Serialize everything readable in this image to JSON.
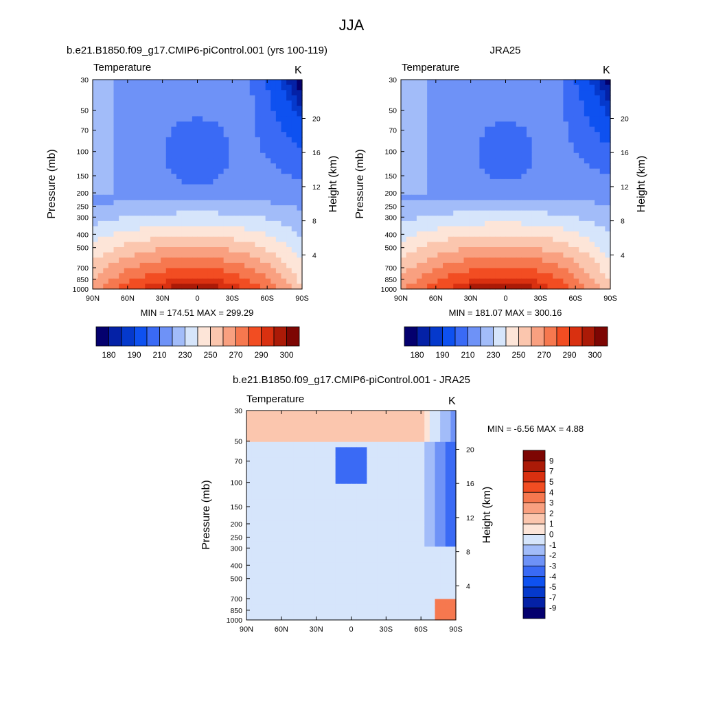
{
  "figure": {
    "title": "JJA"
  },
  "chart_data": [
    {
      "type": "heatmap",
      "panel": "model",
      "title": "b.e21.B1850.f09_g17.CMIP6-piControl.001 (yrs 100-119)",
      "left_label": "Temperature",
      "unit": "K",
      "ylabel": "Pressure (mb)",
      "ylabel_right": "Height (km)",
      "x_ticks": [
        "90N",
        "60N",
        "30N",
        "0",
        "30S",
        "60S",
        "90S"
      ],
      "y_ticks": [
        "30",
        "50",
        "70",
        "100",
        "150",
        "200",
        "250",
        "300",
        "400",
        "500",
        "700",
        "850",
        "1000"
      ],
      "height_ticks": [
        "4",
        "8",
        "12",
        "16",
        "20"
      ],
      "stats": "MIN = 174.51  MAX = 299.29",
      "min": 174.51,
      "max": 299.29,
      "colorbar_labels": [
        "180",
        "190",
        "210",
        "230",
        "250",
        "270",
        "290",
        "300"
      ],
      "colorbar_colors": [
        "#04006e",
        "#0421a6",
        "#0539cc",
        "#0e51f0",
        "#3a6af5",
        "#6e92f7",
        "#a2bcf9",
        "#d6e5fb",
        "#fde5d8",
        "#fbc6ae",
        "#f9a080",
        "#f6784f",
        "#f24d22",
        "#d93010",
        "#ab1a07",
        "#7d0603"
      ]
    },
    {
      "type": "heatmap",
      "panel": "reanalysis",
      "title": "JRA25",
      "left_label": "Temperature",
      "unit": "K",
      "ylabel": "Pressure (mb)",
      "ylabel_right": "Height (km)",
      "x_ticks": [
        "90N",
        "60N",
        "30N",
        "0",
        "30S",
        "60S",
        "90S"
      ],
      "y_ticks": [
        "30",
        "50",
        "70",
        "100",
        "150",
        "200",
        "250",
        "300",
        "400",
        "500",
        "700",
        "850",
        "1000"
      ],
      "height_ticks": [
        "4",
        "8",
        "12",
        "16",
        "20"
      ],
      "stats": "MIN = 181.07  MAX = 300.16",
      "min": 181.07,
      "max": 300.16,
      "colorbar_labels": [
        "180",
        "190",
        "210",
        "230",
        "250",
        "270",
        "290",
        "300"
      ],
      "colorbar_colors": [
        "#04006e",
        "#0421a6",
        "#0539cc",
        "#0e51f0",
        "#3a6af5",
        "#6e92f7",
        "#a2bcf9",
        "#d6e5fb",
        "#fde5d8",
        "#fbc6ae",
        "#f9a080",
        "#f6784f",
        "#f24d22",
        "#d93010",
        "#ab1a07",
        "#7d0603"
      ]
    },
    {
      "type": "heatmap",
      "panel": "difference",
      "title": "b.e21.B1850.f09_g17.CMIP6-piControl.001 - JRA25",
      "left_label": "Temperature",
      "unit": "K",
      "ylabel": "Pressure (mb)",
      "ylabel_right": "Height (km)",
      "x_ticks": [
        "90N",
        "60N",
        "30N",
        "0",
        "30S",
        "60S",
        "90S"
      ],
      "y_ticks": [
        "30",
        "50",
        "70",
        "100",
        "150",
        "200",
        "250",
        "300",
        "400",
        "500",
        "700",
        "850",
        "1000"
      ],
      "height_ticks": [
        "4",
        "8",
        "12",
        "16",
        "20"
      ],
      "stats": "MIN =  -6.56  MAX =   4.88",
      "min": -6.56,
      "max": 4.88,
      "colorbar_labels": [
        "9",
        "7",
        "5",
        "4",
        "3",
        "2",
        "1",
        "0",
        "-1",
        "-2",
        "-3",
        "-4",
        "-5",
        "-7",
        "-9"
      ],
      "colorbar_colors": [
        "#7d0603",
        "#ab1a07",
        "#d93010",
        "#f24d22",
        "#f6784f",
        "#f9a080",
        "#fbc6ae",
        "#fde5d8",
        "#d6e5fb",
        "#a2bcf9",
        "#6e92f7",
        "#3a6af5",
        "#0e51f0",
        "#0539cc",
        "#0421a6",
        "#04006e"
      ]
    }
  ]
}
